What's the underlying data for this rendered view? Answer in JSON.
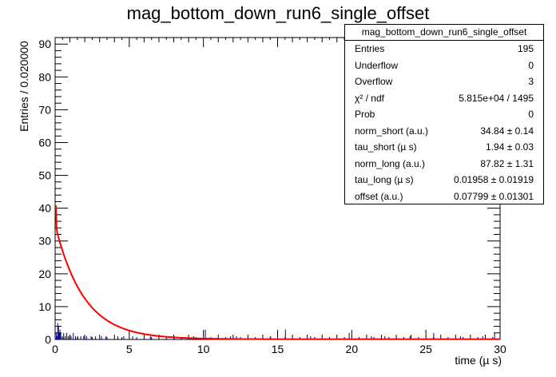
{
  "chart_data": {
    "type": "histogram",
    "title": "mag_bottom_down_run6_single_offset",
    "xlabel": "time (µ s)",
    "ylabel": "Entries / 0.020000",
    "xlim": [
      0,
      30
    ],
    "ylim": [
      0,
      92
    ],
    "x_ticks": [
      "0",
      "5",
      "10",
      "15",
      "20",
      "25",
      "30"
    ],
    "y_ticks": [
      "0",
      "10",
      "20",
      "30",
      "40",
      "50",
      "60",
      "70",
      "80",
      "90"
    ],
    "histogram": {
      "bin_width": 0.02,
      "color": "#000080",
      "bins": [
        {
          "x": 0.05,
          "y": 2
        },
        {
          "x": 0.1,
          "y": 1
        },
        {
          "x": 0.15,
          "y": 5
        },
        {
          "x": 0.2,
          "y": 4
        },
        {
          "x": 0.25,
          "y": 2
        },
        {
          "x": 0.3,
          "y": 3
        },
        {
          "x": 0.35,
          "y": 2
        },
        {
          "x": 0.45,
          "y": 1
        },
        {
          "x": 0.55,
          "y": 2
        },
        {
          "x": 0.65,
          "y": 1
        },
        {
          "x": 0.75,
          "y": 2
        },
        {
          "x": 0.85,
          "y": 1
        },
        {
          "x": 0.95,
          "y": 1
        },
        {
          "x": 1.05,
          "y": 1
        },
        {
          "x": 1.2,
          "y": 2
        },
        {
          "x": 1.35,
          "y": 1
        },
        {
          "x": 1.5,
          "y": 1
        },
        {
          "x": 1.7,
          "y": 1
        },
        {
          "x": 1.9,
          "y": 1
        },
        {
          "x": 2.1,
          "y": 1
        },
        {
          "x": 2.4,
          "y": 1
        },
        {
          "x": 2.7,
          "y": 1
        },
        {
          "x": 3.1,
          "y": 1
        },
        {
          "x": 3.4,
          "y": 1
        },
        {
          "x": 4.2,
          "y": 1
        },
        {
          "x": 4.6,
          "y": 1
        },
        {
          "x": 5.2,
          "y": 1
        },
        {
          "x": 6.4,
          "y": 1
        },
        {
          "x": 8.0,
          "y": 1
        },
        {
          "x": 9.3,
          "y": 1
        },
        {
          "x": 10.1,
          "y": 3
        },
        {
          "x": 11.8,
          "y": 1
        },
        {
          "x": 12.2,
          "y": 1
        },
        {
          "x": 14.5,
          "y": 1
        },
        {
          "x": 15.5,
          "y": 3
        },
        {
          "x": 17.2,
          "y": 1
        },
        {
          "x": 19.8,
          "y": 2
        },
        {
          "x": 21.3,
          "y": 1
        },
        {
          "x": 22.2,
          "y": 1
        },
        {
          "x": 23.9,
          "y": 1
        },
        {
          "x": 25.5,
          "y": 2
        },
        {
          "x": 27.3,
          "y": 1
        },
        {
          "x": 28.8,
          "y": 1
        },
        {
          "x": 29.6,
          "y": 2
        }
      ]
    },
    "fit_function": {
      "name": "fit",
      "color": "#ff0000",
      "formula": "norm_short*exp(-t/tau_short) + norm_long*exp(-t/tau_long) + offset",
      "norm_short": 34.84,
      "tau_short": 1.94,
      "norm_long": 87.82,
      "tau_long": 0.01958,
      "offset": 0.07799
    },
    "stats_box": {
      "title": "mag_bottom_down_run6_single_offset",
      "rows": [
        {
          "label": "Entries",
          "value": "195"
        },
        {
          "label": "Underflow",
          "value": "0"
        },
        {
          "label": "Overflow",
          "value": "3"
        },
        {
          "label": "χ² / ndf",
          "value": "5.815e+04 / 1495"
        },
        {
          "label": "Prob",
          "value": "0"
        },
        {
          "label": "norm_short (a.u.)",
          "value": "34.84 ± 0.14"
        },
        {
          "label": "tau_short (µ s)",
          "value": "1.94 ± 0.03"
        },
        {
          "label": "norm_long (a.u.)",
          "value": "87.82 ± 1.31"
        },
        {
          "label": "tau_long (µ s)",
          "value": "0.01958 ± 0.01919"
        },
        {
          "label": "offset (a.u.)",
          "value": "0.07799 ± 0.01301"
        }
      ]
    }
  }
}
